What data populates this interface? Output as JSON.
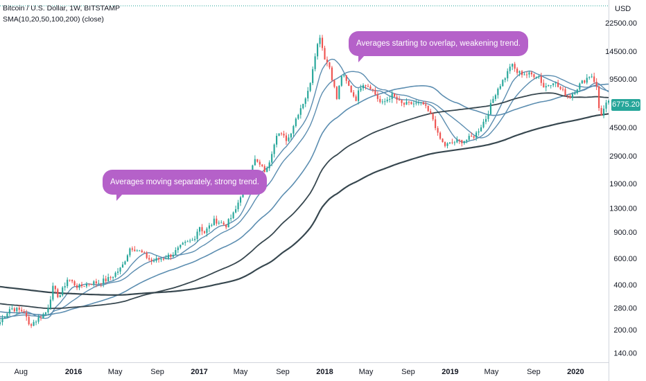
{
  "legend": {
    "symbol": "Bitcoin / U.S. Dollar, 1W, BITSTAMP",
    "indicator": "SMA(10,20,50,100,200) (close)"
  },
  "price_scale": {
    "currency": "USD",
    "last_price": "6775.20",
    "last_price_color": "#26a69a"
  },
  "annotations": {
    "strong_trend": "Averages moving separately, strong trend.",
    "weakening_trend": "Averages starting to overlap, weakening trend."
  },
  "colors": {
    "up": "#26a69a",
    "down": "#ef5350",
    "sma": "#5b8db0",
    "sma_long": "#37474f",
    "bubble": "#b561c9"
  },
  "chart_data": {
    "type": "candlestick",
    "title": "Bitcoin / U.S. Dollar, 1W, BITSTAMP",
    "y_scale": "log",
    "ylim": [
      120,
      30000
    ],
    "x_range": [
      "2015-06-01",
      "2020-04-06"
    ],
    "y_ticks": [
      "22500.00",
      "14500.00",
      "9500.00",
      "4500.00",
      "2900.00",
      "1900.00",
      "1300.00",
      "900.00",
      "600.00",
      "400.00",
      "280.00",
      "200.00",
      "140.00"
    ],
    "x_ticks": [
      {
        "label": "Aug",
        "date": "2015-08-01"
      },
      {
        "label": "2016",
        "date": "2016-01-01"
      },
      {
        "label": "May",
        "date": "2016-05-01"
      },
      {
        "label": "Sep",
        "date": "2016-09-01"
      },
      {
        "label": "2017",
        "date": "2017-01-01"
      },
      {
        "label": "May",
        "date": "2017-05-01"
      },
      {
        "label": "Sep",
        "date": "2017-09-01"
      },
      {
        "label": "2018",
        "date": "2018-01-01"
      },
      {
        "label": "May",
        "date": "2018-05-01"
      },
      {
        "label": "Sep",
        "date": "2018-09-01"
      },
      {
        "label": "2019",
        "date": "2019-01-01"
      },
      {
        "label": "May",
        "date": "2019-05-01"
      },
      {
        "label": "Sep",
        "date": "2019-09-01"
      },
      {
        "label": "2020",
        "date": "2020-01-01"
      }
    ],
    "close_path": [
      [
        "2015-06-01",
        225
      ],
      [
        "2015-07-01",
        280
      ],
      [
        "2015-08-10",
        265
      ],
      [
        "2015-08-24",
        215
      ],
      [
        "2015-09-15",
        232
      ],
      [
        "2015-10-15",
        265
      ],
      [
        "2015-11-02",
        380
      ],
      [
        "2015-11-20",
        330
      ],
      [
        "2015-12-15",
        440
      ],
      [
        "2016-01-15",
        385
      ],
      [
        "2016-02-15",
        410
      ],
      [
        "2016-03-15",
        415
      ],
      [
        "2016-04-15",
        440
      ],
      [
        "2016-05-20",
        520
      ],
      [
        "2016-06-15",
        720
      ],
      [
        "2016-07-15",
        660
      ],
      [
        "2016-08-15",
        575
      ],
      [
        "2016-09-15",
        600
      ],
      [
        "2016-10-15",
        640
      ],
      [
        "2016-11-15",
        740
      ],
      [
        "2016-12-15",
        800
      ],
      [
        "2017-01-01",
        990
      ],
      [
        "2017-01-15",
        890
      ],
      [
        "2017-02-15",
        1080
      ],
      [
        "2017-03-20",
        1000
      ],
      [
        "2017-04-15",
        1230
      ],
      [
        "2017-05-15",
        1980
      ],
      [
        "2017-06-10",
        2750
      ],
      [
        "2017-07-15",
        2250
      ],
      [
        "2017-08-15",
        4200
      ],
      [
        "2017-09-15",
        3700
      ],
      [
        "2017-10-15",
        5600
      ],
      [
        "2017-11-15",
        7900
      ],
      [
        "2017-12-04",
        14000
      ],
      [
        "2017-12-18",
        18500
      ],
      [
        "2017-12-30",
        13500
      ],
      [
        "2018-01-15",
        11400
      ],
      [
        "2018-02-05",
        7000
      ],
      [
        "2018-02-20",
        10300
      ],
      [
        "2018-03-15",
        8200
      ],
      [
        "2018-04-01",
        6900
      ],
      [
        "2018-04-20",
        9000
      ],
      [
        "2018-05-15",
        8400
      ],
      [
        "2018-06-15",
        6400
      ],
      [
        "2018-07-15",
        7400
      ],
      [
        "2018-08-15",
        6400
      ],
      [
        "2018-09-15",
        6500
      ],
      [
        "2018-10-15",
        6400
      ],
      [
        "2018-11-15",
        5000
      ],
      [
        "2018-11-26",
        4000
      ],
      [
        "2018-12-15",
        3400
      ],
      [
        "2019-01-15",
        3600
      ],
      [
        "2019-02-15",
        3700
      ],
      [
        "2019-03-15",
        4000
      ],
      [
        "2019-04-15",
        5200
      ],
      [
        "2019-05-15",
        7900
      ],
      [
        "2019-06-15",
        10200
      ],
      [
        "2019-06-26",
        12000
      ],
      [
        "2019-07-15",
        10500
      ],
      [
        "2019-08-15",
        10200
      ],
      [
        "2019-09-15",
        10000
      ],
      [
        "2019-10-01",
        8300
      ],
      [
        "2019-10-28",
        9200
      ],
      [
        "2019-11-15",
        8200
      ],
      [
        "2019-12-15",
        7200
      ],
      [
        "2020-01-15",
        8800
      ],
      [
        "2020-02-15",
        10200
      ],
      [
        "2020-03-01",
        8700
      ],
      [
        "2020-03-12",
        5300
      ],
      [
        "2020-03-30",
        6400
      ],
      [
        "2020-04-06",
        6775
      ]
    ]
  }
}
